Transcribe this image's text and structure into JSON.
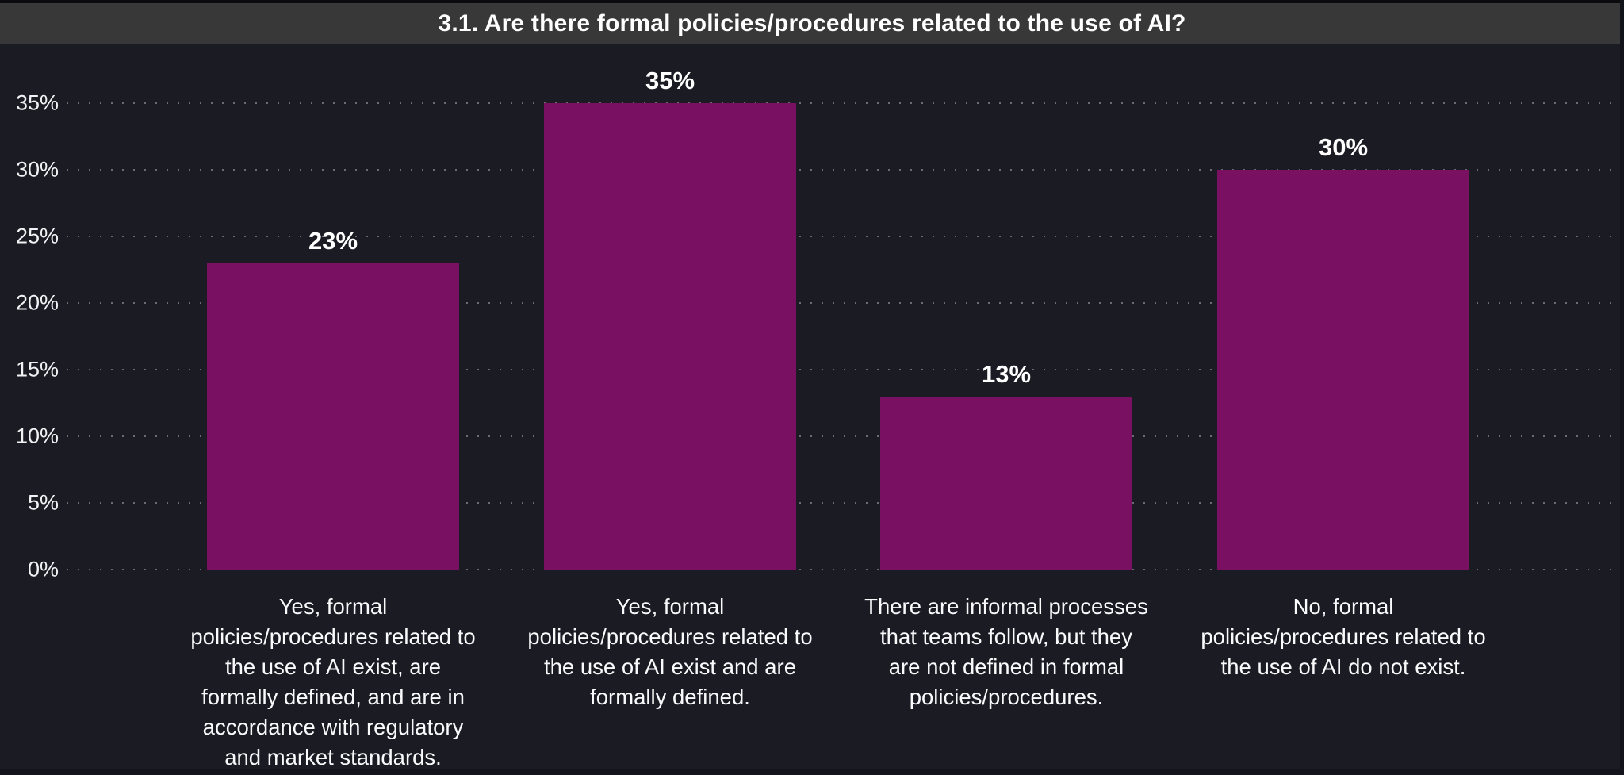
{
  "header": {
    "title": "3.1. Are there formal policies/procedures related to the use of AI?"
  },
  "colors": {
    "background": "#1B1B24",
    "header_bar": "#383838",
    "bar_fill": "#7A1062",
    "text": "#FFFFFF",
    "gridline": "rgba(205,205,215,0.45)"
  },
  "chart_data": {
    "type": "bar",
    "title": "3.1. Are there formal policies/procedures related to the use of AI?",
    "xlabel": "",
    "ylabel": "",
    "ylim": [
      0,
      35
    ],
    "y_tick_labels": [
      "35%",
      "30%",
      "25%",
      "20%",
      "15%",
      "10%",
      "5%",
      "0%"
    ],
    "y_tick_values": [
      35,
      30,
      25,
      20,
      15,
      10,
      5,
      0
    ],
    "grid": "dotted-horizontal",
    "legend_position": "none",
    "bar_color": "#7A1062",
    "categories": [
      "Yes, formal policies/procedures related to the use of AI exist, are formally defined, and are in accordance with regulatory and market standards.",
      "Yes, formal policies/procedures related to the use of AI exist and are formally defined.",
      "There are informal processes that teams follow, but they are not defined in formal policies/procedures.",
      "No, formal policies/procedures related to the use of AI do not exist."
    ],
    "values": [
      23,
      35,
      13,
      30
    ],
    "bars": [
      {
        "value": 23,
        "label": "23%",
        "category_lines": [
          "Yes, formal",
          "policies/procedures related to",
          "the use of AI exist, are",
          "formally defined, and are in",
          "accordance with regulatory",
          "and market standards."
        ]
      },
      {
        "value": 35,
        "label": "35%",
        "category_lines": [
          "Yes, formal",
          "policies/procedures related to",
          "the use of AI exist and are",
          "formally defined."
        ]
      },
      {
        "value": 13,
        "label": "13%",
        "category_lines": [
          "There are informal processes",
          "that teams follow, but they",
          "are not defined in formal",
          "policies/procedures."
        ]
      },
      {
        "value": 30,
        "label": "30%",
        "category_lines": [
          "No, formal",
          "policies/procedures related to",
          "the use of AI do not exist."
        ]
      }
    ]
  }
}
